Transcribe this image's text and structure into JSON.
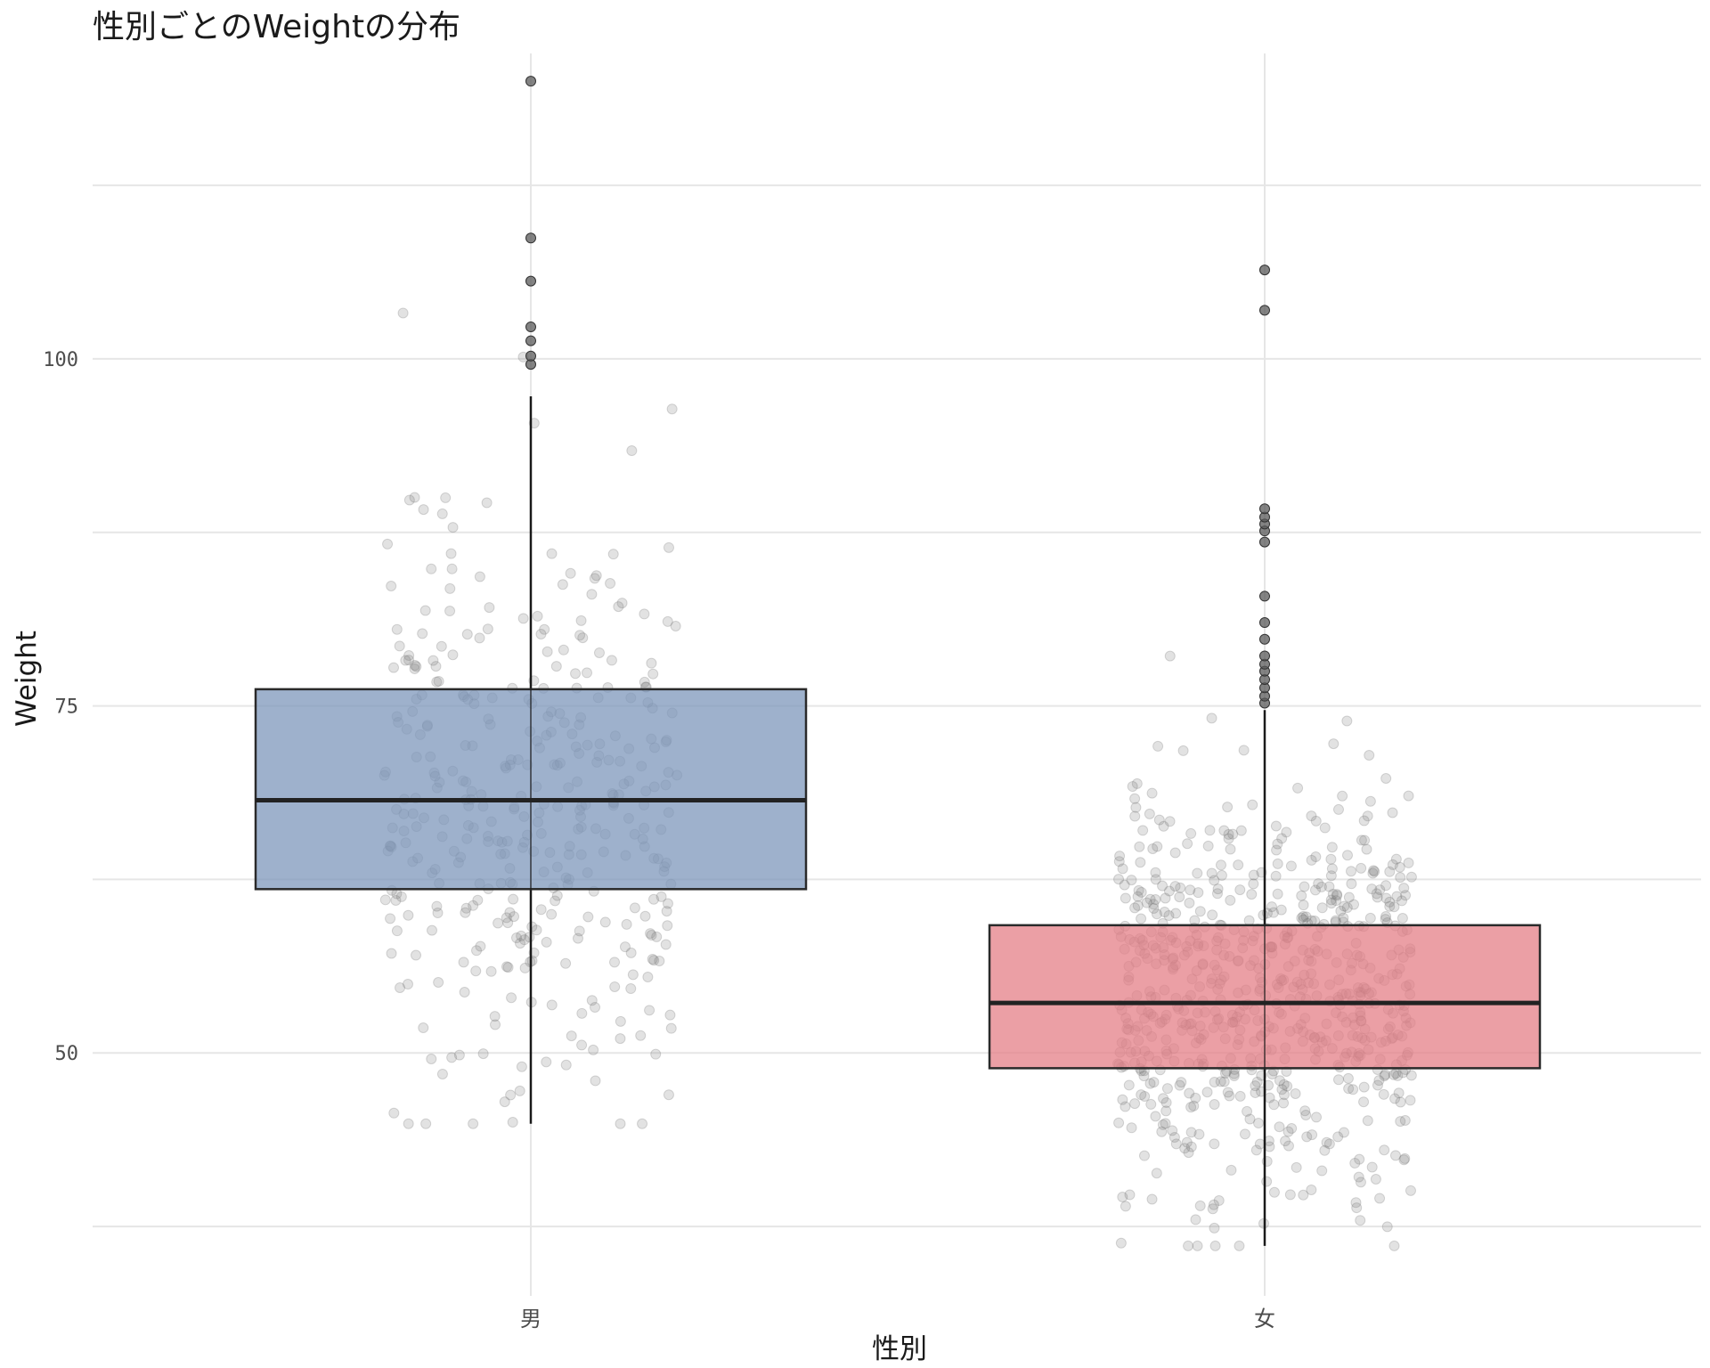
{
  "chart_data": {
    "type": "box",
    "title": "性別ごとのWeightの分布",
    "xlabel": "性別",
    "ylabel": "Weight",
    "ylim": [
      32.5,
      122.0
    ],
    "yticks": [
      50,
      75,
      100
    ],
    "grid": true,
    "legend": "none",
    "categories": [
      "男",
      "女"
    ],
    "colors": {
      "男": "#7d97bb",
      "女": "#e47f87"
    },
    "series": [
      {
        "category": "男",
        "whisker_low": 44.9,
        "q1": 61.8,
        "median": 68.2,
        "q3": 76.2,
        "whisker_high": 97.3,
        "outliers": [
          99.6,
          100.2,
          101.3,
          102.3,
          105.6,
          108.7,
          120.0
        ],
        "n_jitter": 380
      },
      {
        "category": "女",
        "whisker_low": 36.1,
        "q1": 48.9,
        "median": 53.6,
        "q3": 59.2,
        "whisker_high": 74.7,
        "outliers": [
          75.2,
          75.7,
          76.3,
          76.9,
          77.5,
          78.0,
          78.6,
          79.8,
          81.0,
          82.9,
          86.8,
          87.6,
          88.1,
          88.6,
          89.2,
          103.5,
          106.4
        ]
      }
    ]
  }
}
